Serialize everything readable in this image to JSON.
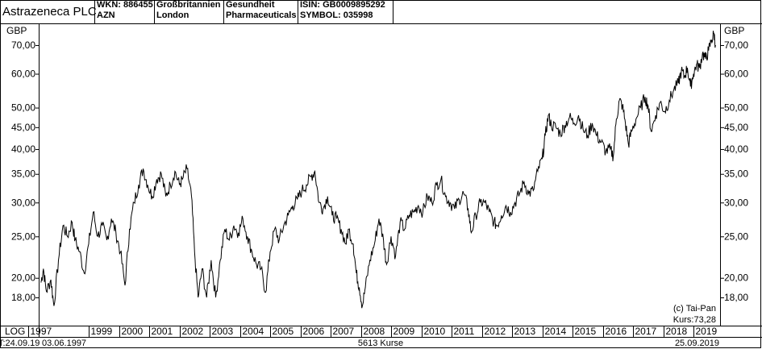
{
  "header": {
    "title": "Astrazeneca PLC",
    "wkn": "WKN: 886455",
    "symbol_short": "AZN",
    "country": "Großbritannien",
    "city": "London",
    "sector1": "Gesundheit",
    "sector2": "Pharmaceuticals",
    "isin": "ISIN: GB0009895292",
    "symbol": "SYMBOL: 035998"
  },
  "footer": {
    "scale": "LOG",
    "date_left": "T:24.09.19",
    "start_date": "03.06.1997",
    "count": "5613 Kurse",
    "end_date": "25.09.2019"
  },
  "copyright": "(c) Tai-Pan",
  "kurs": "Kurs:73,28",
  "chart_data": {
    "type": "line",
    "scale": "log",
    "currency_label": "GBP",
    "y_ticks": [
      {
        "v": 70,
        "label": "70,00"
      },
      {
        "v": 60,
        "label": "60,00"
      },
      {
        "v": 50,
        "label": "50,00"
      },
      {
        "v": 45,
        "label": "45,00"
      },
      {
        "v": 40,
        "label": "40,00"
      },
      {
        "v": 35,
        "label": "35,00"
      },
      {
        "v": 30,
        "label": "30,00"
      },
      {
        "v": 25,
        "label": "25,00"
      },
      {
        "v": 20,
        "label": "20,00"
      },
      {
        "v": 18,
        "label": "18,00"
      }
    ],
    "x_ticks": [
      "1997",
      "1999",
      "2000",
      "2001",
      "2002",
      "2003",
      "2004",
      "2005",
      "2006",
      "2007",
      "2008",
      "2009",
      "2010",
      "2011",
      "2012",
      "2013",
      "2014",
      "2015",
      "2016",
      "2017",
      "2018",
      "2019"
    ],
    "x_tick_years": [
      1997,
      1999,
      2000,
      2001,
      2002,
      2003,
      2004,
      2005,
      2006,
      2007,
      2008,
      2009,
      2010,
      2011,
      2012,
      2013,
      2014,
      2015,
      2016,
      2017,
      2018,
      2019
    ],
    "series": [
      {
        "values": [
          [
            1997.42,
            19.5
          ],
          [
            1997.5,
            21.0
          ],
          [
            1997.6,
            18.6
          ],
          [
            1997.75,
            19.8
          ],
          [
            1997.85,
            17.2
          ],
          [
            1998.0,
            22.0
          ],
          [
            1998.15,
            26.5
          ],
          [
            1998.3,
            25.0
          ],
          [
            1998.45,
            27.0
          ],
          [
            1998.55,
            24.5
          ],
          [
            1998.7,
            23.0
          ],
          [
            1998.85,
            20.5
          ],
          [
            1999.0,
            24.0
          ],
          [
            1999.15,
            28.5
          ],
          [
            1999.3,
            25.0
          ],
          [
            1999.45,
            26.5
          ],
          [
            1999.6,
            24.5
          ],
          [
            1999.75,
            27.5
          ],
          [
            1999.9,
            25.5
          ],
          [
            2000.05,
            23.0
          ],
          [
            2000.2,
            19.2
          ],
          [
            2000.35,
            26.0
          ],
          [
            2000.5,
            30.0
          ],
          [
            2000.65,
            33.0
          ],
          [
            2000.8,
            36.0
          ],
          [
            2000.95,
            33.0
          ],
          [
            2001.1,
            31.0
          ],
          [
            2001.25,
            34.0
          ],
          [
            2001.4,
            35.0
          ],
          [
            2001.55,
            31.0
          ],
          [
            2001.7,
            33.0
          ],
          [
            2001.85,
            35.5
          ],
          [
            2002.0,
            33.0
          ],
          [
            2002.1,
            34.0
          ],
          [
            2002.25,
            36.0
          ],
          [
            2002.4,
            31.0
          ],
          [
            2002.5,
            23.0
          ],
          [
            2002.62,
            18.0
          ],
          [
            2002.75,
            21.0
          ],
          [
            2002.9,
            18.0
          ],
          [
            2003.05,
            22.0
          ],
          [
            2003.2,
            18.0
          ],
          [
            2003.35,
            22.0
          ],
          [
            2003.5,
            26.0
          ],
          [
            2003.65,
            24.5
          ],
          [
            2003.8,
            26.5
          ],
          [
            2003.95,
            25.5
          ],
          [
            2004.1,
            27.5
          ],
          [
            2004.25,
            25.0
          ],
          [
            2004.4,
            23.0
          ],
          [
            2004.55,
            21.5
          ],
          [
            2004.7,
            21.0
          ],
          [
            2004.85,
            18.5
          ],
          [
            2005.0,
            23.0
          ],
          [
            2005.15,
            26.0
          ],
          [
            2005.3,
            24.5
          ],
          [
            2005.45,
            26.5
          ],
          [
            2005.6,
            28.0
          ],
          [
            2005.75,
            29.5
          ],
          [
            2005.9,
            30.5
          ],
          [
            2006.05,
            32.0
          ],
          [
            2006.2,
            33.0
          ],
          [
            2006.35,
            34.5
          ],
          [
            2006.48,
            35.5
          ],
          [
            2006.62,
            30.0
          ],
          [
            2006.75,
            29.0
          ],
          [
            2006.9,
            31.0
          ],
          [
            2007.05,
            28.0
          ],
          [
            2007.2,
            27.5
          ],
          [
            2007.35,
            26.0
          ],
          [
            2007.5,
            24.0
          ],
          [
            2007.6,
            26.0
          ],
          [
            2007.75,
            24.0
          ],
          [
            2007.85,
            20.5
          ],
          [
            2007.95,
            19.0
          ],
          [
            2008.05,
            17.2
          ],
          [
            2008.15,
            19.0
          ],
          [
            2008.3,
            22.0
          ],
          [
            2008.45,
            24.0
          ],
          [
            2008.6,
            27.5
          ],
          [
            2008.75,
            24.5
          ],
          [
            2008.85,
            21.5
          ],
          [
            2009.0,
            25.0
          ],
          [
            2009.15,
            22.5
          ],
          [
            2009.3,
            27.0
          ],
          [
            2009.45,
            26.0
          ],
          [
            2009.6,
            28.0
          ],
          [
            2009.75,
            28.5
          ],
          [
            2009.9,
            29.5
          ],
          [
            2010.05,
            28.5
          ],
          [
            2010.2,
            31.0
          ],
          [
            2010.35,
            30.0
          ],
          [
            2010.5,
            33.0
          ],
          [
            2010.65,
            34.0
          ],
          [
            2010.8,
            31.0
          ],
          [
            2010.95,
            30.0
          ],
          [
            2011.1,
            29.0
          ],
          [
            2011.25,
            30.5
          ],
          [
            2011.4,
            31.5
          ],
          [
            2011.55,
            29.0
          ],
          [
            2011.65,
            25.5
          ],
          [
            2011.8,
            28.0
          ],
          [
            2011.95,
            30.0
          ],
          [
            2012.1,
            30.0
          ],
          [
            2012.25,
            28.5
          ],
          [
            2012.4,
            27.0
          ],
          [
            2012.5,
            26.5
          ],
          [
            2012.65,
            28.0
          ],
          [
            2012.8,
            29.5
          ],
          [
            2012.95,
            28.5
          ],
          [
            2013.1,
            30.0
          ],
          [
            2013.25,
            31.5
          ],
          [
            2013.4,
            33.5
          ],
          [
            2013.55,
            31.5
          ],
          [
            2013.7,
            32.0
          ],
          [
            2013.85,
            35.5
          ],
          [
            2014.0,
            38.0
          ],
          [
            2014.1,
            43.0
          ],
          [
            2014.2,
            48.0
          ],
          [
            2014.3,
            45.5
          ],
          [
            2014.45,
            45.0
          ],
          [
            2014.6,
            43.5
          ],
          [
            2014.75,
            45.5
          ],
          [
            2014.9,
            47.5
          ],
          [
            2015.05,
            46.0
          ],
          [
            2015.2,
            48.0
          ],
          [
            2015.35,
            44.5
          ],
          [
            2015.5,
            43.0
          ],
          [
            2015.65,
            46.0
          ],
          [
            2015.8,
            43.0
          ],
          [
            2015.95,
            41.5
          ],
          [
            2016.1,
            39.5
          ],
          [
            2016.25,
            40.0
          ],
          [
            2016.35,
            38.5
          ],
          [
            2016.45,
            47.0
          ],
          [
            2016.55,
            52.0
          ],
          [
            2016.65,
            50.5
          ],
          [
            2016.75,
            46.0
          ],
          [
            2016.85,
            41.0
          ],
          [
            2016.95,
            44.0
          ],
          [
            2017.1,
            47.0
          ],
          [
            2017.25,
            50.0
          ],
          [
            2017.4,
            53.0
          ],
          [
            2017.5,
            50.5
          ],
          [
            2017.6,
            44.0
          ],
          [
            2017.75,
            48.0
          ],
          [
            2017.9,
            51.5
          ],
          [
            2018.05,
            49.0
          ],
          [
            2018.2,
            52.0
          ],
          [
            2018.35,
            55.0
          ],
          [
            2018.5,
            57.0
          ],
          [
            2018.6,
            61.0
          ],
          [
            2018.7,
            59.0
          ],
          [
            2018.8,
            62.0
          ],
          [
            2018.9,
            56.0
          ],
          [
            2019.0,
            60.0
          ],
          [
            2019.1,
            63.0
          ],
          [
            2019.2,
            62.0
          ],
          [
            2019.3,
            67.0
          ],
          [
            2019.4,
            65.0
          ],
          [
            2019.5,
            68.0
          ],
          [
            2019.6,
            72.0
          ],
          [
            2019.68,
            74.5
          ],
          [
            2019.73,
            70.0
          ]
        ]
      }
    ]
  }
}
